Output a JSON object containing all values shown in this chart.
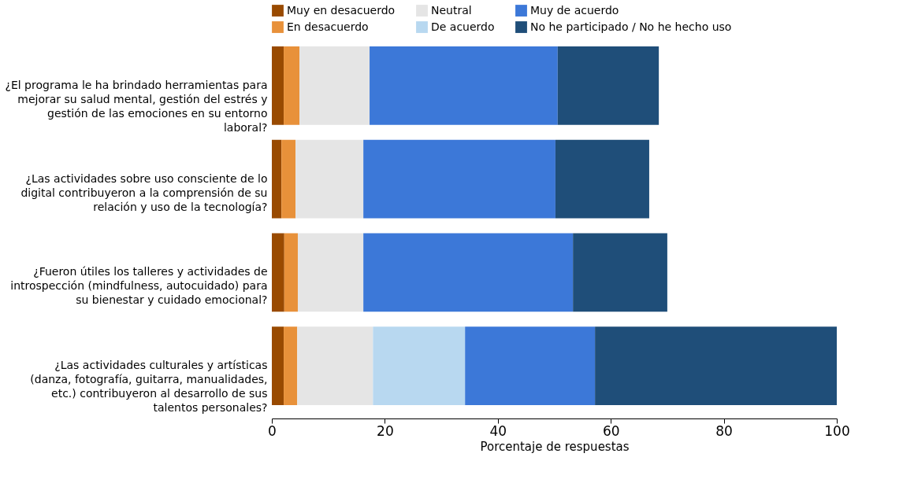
{
  "chart_data": {
    "type": "bar",
    "orientation": "horizontal",
    "stacked": true,
    "xlabel": "Porcentaje de respuestas",
    "legend": "top",
    "grid": false,
    "categories": [
      "¿El programa le ha brindado herramientas para mejorar su salud mental, gestión del estrés y gestión de las emociones en su entorno laboral?",
      "¿Las actividades sobre uso consciente de lo digital contribuyeron a la comprensión de su relación y uso de la tecnología?",
      "¿Fueron útiles los talleres y actividades de introspección (mindfulness, autocuidado) para su bienestar y cuidado emocional?",
      "¿Las actividades culturales y artísticas (danza, fotografía, guitarra, manualidades, etc.) contribuyeron al desarrollo de sus talentos personales?"
    ],
    "series": [
      {
        "name": "Muy en desacuerdo",
        "color": "#994a00",
        "values": [
          2.1,
          1.7,
          2.2,
          2.1
        ]
      },
      {
        "name": "En desacuerdo",
        "color": "#e8913a",
        "values": [
          2.8,
          2.5,
          2.4,
          2.4
        ]
      },
      {
        "name": "Neutral",
        "color": "#e5e5e5",
        "values": [
          12.4,
          12.0,
          11.6,
          13.4
        ]
      },
      {
        "name": "De acuerdo",
        "color": "#b8d8f0",
        "values": [
          null,
          null,
          null,
          16.3
        ]
      },
      {
        "name": "Muy de acuerdo",
        "color": "#3c78d8",
        "values": [
          33.3,
          34.0,
          37.1,
          23.0
        ]
      },
      {
        "name": "No he participado / No he hecho uso",
        "color": "#1f4e79",
        "values": [
          17.9,
          16.6,
          16.7,
          42.8
        ]
      }
    ],
    "xlim": [
      0,
      100
    ],
    "xticks": [
      0,
      20,
      40,
      60,
      80,
      100
    ]
  }
}
